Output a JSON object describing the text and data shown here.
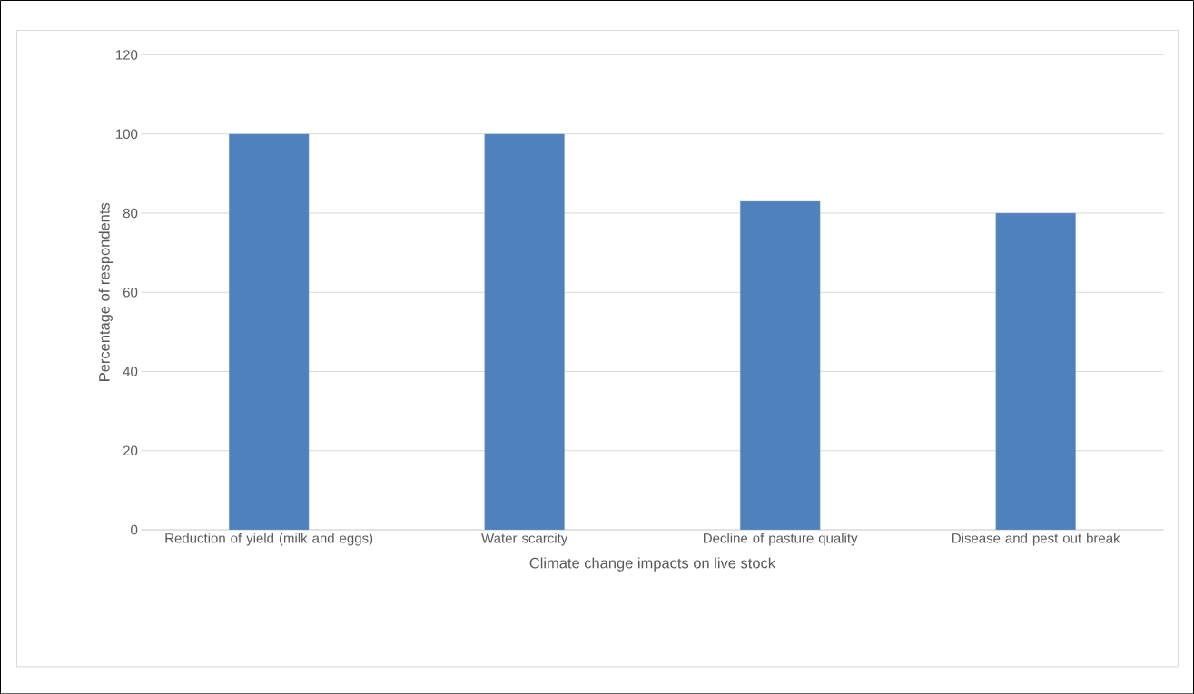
{
  "chart_data": {
    "type": "bar",
    "categories": [
      "Reduction of yield (milk and eggs)",
      "Water scarcity",
      "Decline of pasture quality",
      "Disease and pest out break"
    ],
    "values": [
      100,
      100,
      83,
      80
    ],
    "color": "#4f81bd",
    "xlabel": "Climate change impacts on live stock",
    "ylabel": "Percentage of respondents",
    "ylim": [
      0,
      120
    ],
    "yticks": [
      0,
      20,
      40,
      60,
      80,
      100,
      120
    ],
    "grid": "y"
  }
}
